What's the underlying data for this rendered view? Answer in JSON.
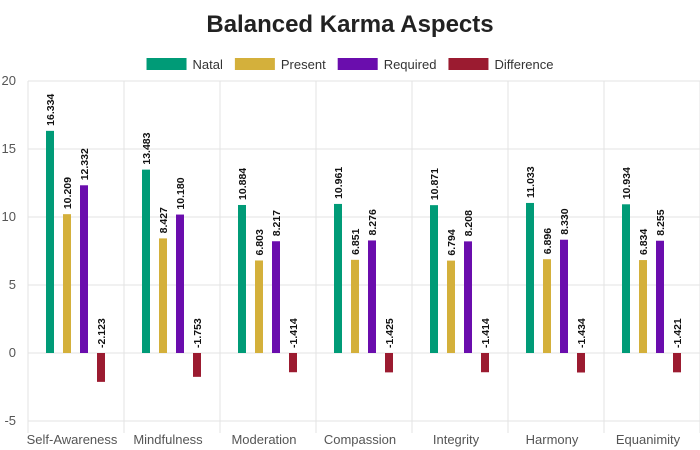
{
  "chart_data": {
    "type": "bar",
    "title": "Balanced Karma Aspects",
    "xlabel": "",
    "ylabel": "",
    "ylim": [
      -5,
      20
    ],
    "yticks": [
      -5,
      0,
      5,
      10,
      15,
      20
    ],
    "grid": true,
    "legend_position": "top-center",
    "categories": [
      "Self-Awareness",
      "Mindfulness",
      "Moderation",
      "Compassion",
      "Integrity",
      "Harmony",
      "Equanimity"
    ],
    "series": [
      {
        "name": "Natal",
        "color": "#009b77",
        "values": [
          16.334,
          13.483,
          10.884,
          10.961,
          10.871,
          11.033,
          10.934
        ]
      },
      {
        "name": "Present",
        "color": "#d4b03b",
        "values": [
          10.209,
          8.427,
          6.803,
          6.851,
          6.794,
          6.896,
          6.834
        ]
      },
      {
        "name": "Required",
        "color": "#6a0dad",
        "values": [
          12.332,
          10.18,
          8.217,
          8.276,
          8.208,
          8.33,
          8.255
        ]
      },
      {
        "name": "Difference",
        "color": "#9b1b30",
        "values": [
          -2.123,
          -1.753,
          -1.414,
          -1.425,
          -1.414,
          -1.434,
          -1.421
        ]
      }
    ]
  }
}
